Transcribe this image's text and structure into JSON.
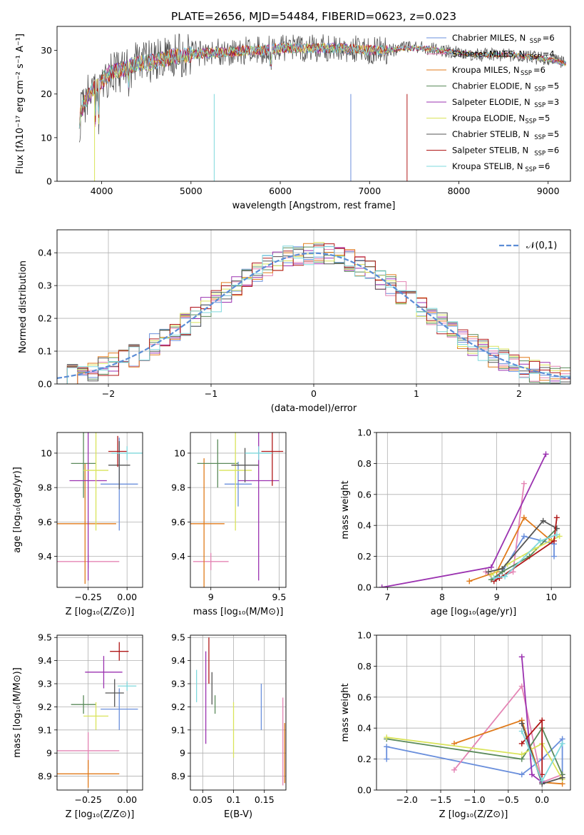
{
  "figure_title": "PLATE=2656, MJD=54484, FIBERID=0623, z=0.023",
  "models": [
    {
      "name": "Chabrier MILES",
      "nssp": "6",
      "color": "#6a8fdc"
    },
    {
      "name": "Salpeter MILES",
      "nssp": "4",
      "color": "#e484b4"
    },
    {
      "name": "Kroupa MILES",
      "nssp": "6",
      "color": "#e07a1a"
    },
    {
      "name": "Chabrier ELODIE",
      "nssp": "5",
      "color": "#5a8a5a"
    },
    {
      "name": "Salpeter ELODIE",
      "nssp": "3",
      "color": "#9b32b0"
    },
    {
      "name": "Kroupa ELODIE",
      "nssp": "5",
      "color": "#d9e35a"
    },
    {
      "name": "Chabrier STELIB",
      "nssp": "5",
      "color": "#555555"
    },
    {
      "name": "Salpeter STELIB",
      "nssp": "6",
      "color": "#b01818"
    },
    {
      "name": "Kroupa STELIB",
      "nssp": "6",
      "color": "#7ed8dc"
    }
  ],
  "chart_data": [
    {
      "id": "spectrum",
      "type": "line",
      "xlabel": "wavelength [Angstrom, rest frame]",
      "ylabel": "Flux [fλ10⁻¹⁷ erg cm⁻² s⁻¹ A⁻¹]",
      "xlim": [
        3500,
        9250
      ],
      "ylim": [
        0,
        35.5
      ],
      "xticks": [
        4000,
        5000,
        6000,
        7000,
        8000,
        9000
      ],
      "yticks": [
        0,
        10,
        20,
        30
      ],
      "x": [
        3750,
        3800,
        3900,
        4000,
        4100,
        4200,
        4300,
        4400,
        4600,
        4800,
        5000,
        5200,
        5400,
        5600,
        5800,
        6000,
        6200,
        6400,
        6600,
        6800,
        7000,
        7200,
        7400,
        7600,
        7800,
        8000,
        8200,
        8400,
        8600,
        8800,
        9000,
        9200
      ],
      "y": [
        14,
        18,
        21,
        23,
        25,
        25.5,
        26,
        27,
        27.5,
        28.5,
        29,
        29.5,
        29.5,
        30,
        30,
        30.5,
        30.5,
        30.5,
        30.5,
        30.5,
        30,
        30,
        30.5,
        30.5,
        30,
        29.5,
        29,
        29,
        29,
        28.5,
        28,
        27
      ],
      "legend": "upper right"
    },
    {
      "id": "residuals",
      "type": "histogram",
      "xlabel": "(data-model)/error",
      "ylabel": "Normed distribution",
      "xlim": [
        -2.5,
        2.5
      ],
      "ylim": [
        0,
        0.47
      ],
      "xticks": [
        -2,
        -1,
        0,
        1,
        2
      ],
      "yticks": [
        0.0,
        0.1,
        0.2,
        0.3,
        0.4
      ],
      "reference": {
        "name": "N(0,1)",
        "label": "𝒩(0,1)",
        "mean": 0,
        "sigma": 1,
        "color": "#5b8dd6"
      },
      "grid": true,
      "legend": "upper right"
    },
    {
      "id": "age_vs_Z",
      "type": "errorbar",
      "xlabel": "Z [log₁₀(Z/Z⊙)]",
      "ylabel": "age  [log₁₀(age/yr)]",
      "xlim": [
        -0.45,
        0.1
      ],
      "ylim": [
        9.22,
        10.12
      ],
      "xticks": [
        -0.25,
        0.0
      ],
      "xtick_labels": [
        "−0.25",
        "0.00"
      ],
      "yticks": [
        9.4,
        9.6,
        9.8,
        10.0
      ],
      "points": [
        {
          "x": -0.05,
          "y": 9.82,
          "xerr": 0.12,
          "yerr": 0.27
        },
        {
          "x": -0.25,
          "y": 9.37,
          "xerr": 0.2,
          "yerr": 0.04
        },
        {
          "x": -0.27,
          "y": 9.59,
          "xerr": 0.2,
          "yerr": 0.35
        },
        {
          "x": -0.28,
          "y": 9.94,
          "xerr": 0.08,
          "yerr": 0.2
        },
        {
          "x": -0.25,
          "y": 9.84,
          "xerr": 0.12,
          "yerr": 0.58
        },
        {
          "x": -0.2,
          "y": 9.9,
          "xerr": 0.08,
          "yerr": 0.35
        },
        {
          "x": -0.05,
          "y": 9.93,
          "xerr": 0.07,
          "yerr": 0.14
        },
        {
          "x": -0.06,
          "y": 10.01,
          "xerr": 0.06,
          "yerr": 0.09
        },
        {
          "x": 0.0,
          "y": 10.0,
          "xerr": 0.1,
          "yerr": 0.04
        }
      ]
    },
    {
      "id": "age_vs_mass",
      "type": "errorbar",
      "xlabel": "mass [log₁₀(M/M⊙)]",
      "ylabel": "",
      "xlim": [
        8.85,
        9.55
      ],
      "ylim": [
        9.22,
        10.12
      ],
      "xticks": [
        9.0,
        9.5
      ],
      "yticks": [
        9.4,
        9.6,
        9.8,
        10.0
      ],
      "points": [
        {
          "x": 9.2,
          "y": 9.82,
          "xerr": 0.1,
          "yerr": 0.13
        },
        {
          "x": 9.0,
          "y": 9.37,
          "xerr": 0.13,
          "yerr": 0.05
        },
        {
          "x": 8.95,
          "y": 9.59,
          "xerr": 0.15,
          "yerr": 0.38
        },
        {
          "x": 9.05,
          "y": 9.94,
          "xerr": 0.15,
          "yerr": 0.14
        },
        {
          "x": 9.35,
          "y": 9.84,
          "xerr": 0.15,
          "yerr": 0.58
        },
        {
          "x": 9.18,
          "y": 9.9,
          "xerr": 0.12,
          "yerr": 0.35
        },
        {
          "x": 9.25,
          "y": 9.93,
          "xerr": 0.1,
          "yerr": 0.1
        },
        {
          "x": 9.45,
          "y": 10.01,
          "xerr": 0.08,
          "yerr": 0.2
        },
        {
          "x": 9.35,
          "y": 10.0,
          "xerr": 0.1,
          "yerr": 0.04
        }
      ]
    },
    {
      "id": "weight_vs_age",
      "type": "line",
      "xlabel": "age  [log₁₀(age/yr)]",
      "ylabel": "mass weight",
      "xlim": [
        6.8,
        10.35
      ],
      "ylim": [
        0,
        1
      ],
      "xticks": [
        7,
        8,
        9,
        10
      ],
      "yticks": [
        0.0,
        0.2,
        0.4,
        0.6,
        0.8,
        1.0
      ],
      "grid": true,
      "series": [
        {
          "x": [
            8.95,
            9.1,
            9.5,
            10.05,
            10.05
          ],
          "y": [
            0.05,
            0.1,
            0.33,
            0.28,
            0.2
          ]
        },
        {
          "x": 8.7,
          "_": "",
          "y": 0
        },
        {
          "x": [
            8.8,
            8.95,
            9.3,
            9.5
          ],
          "y": [
            0.1,
            0.05,
            0.1,
            0.67
          ]
        },
        {
          "x": [
            8.5,
            9.0,
            9.5,
            10.0
          ],
          "y": [
            0.04,
            0.1,
            0.45,
            0.3
          ]
        },
        {
          "x": [
            8.9,
            9.1,
            9.6,
            10.1
          ],
          "y": [
            0.05,
            0.1,
            0.2,
            0.38
          ]
        },
        {
          "x": [
            6.9,
            8.9,
            9.9
          ],
          "y": [
            0.0,
            0.13,
            0.86
          ]
        },
        {
          "x": [
            8.9,
            9.2,
            9.7,
            10.15
          ],
          "y": [
            0.08,
            0.15,
            0.25,
            0.33
          ]
        },
        {
          "x": [
            8.85,
            9.1,
            9.85,
            10.1
          ],
          "y": [
            0.1,
            0.12,
            0.43,
            0.38
          ]
        },
        {
          "x": [
            8.95,
            9.05,
            10.05,
            10.1
          ],
          "y": [
            0.04,
            0.06,
            0.3,
            0.45
          ]
        },
        {
          "x": [
            8.95,
            9.15,
            9.8,
            10.1
          ],
          "y": [
            0.06,
            0.07,
            0.3,
            0.34
          ]
        }
      ]
    },
    {
      "id": "mass_vs_Z",
      "type": "errorbar",
      "xlabel": "Z [log₁₀(Z/Z⊙)]",
      "ylabel": "mass [log₁₀(M/M⊙)]",
      "xlim": [
        -0.45,
        0.1
      ],
      "ylim": [
        8.84,
        9.51
      ],
      "xticks": [
        -0.25,
        0.0
      ],
      "xtick_labels": [
        "−0.25",
        "0.00"
      ],
      "yticks": [
        8.9,
        9.0,
        9.1,
        9.2,
        9.3,
        9.4,
        9.5
      ],
      "points": [
        {
          "x": -0.05,
          "y": 9.19,
          "xerr": 0.12,
          "yerr": 0.09
        },
        {
          "x": -0.25,
          "y": 9.01,
          "xerr": 0.2,
          "yerr": 0.08
        },
        {
          "x": -0.25,
          "y": 8.91,
          "xerr": 0.2,
          "yerr": 0.06
        },
        {
          "x": -0.28,
          "y": 9.21,
          "xerr": 0.08,
          "yerr": 0.04
        },
        {
          "x": -0.15,
          "y": 9.35,
          "xerr": 0.12,
          "yerr": 0.07
        },
        {
          "x": -0.2,
          "y": 9.16,
          "xerr": 0.08,
          "yerr": 0.06
        },
        {
          "x": -0.08,
          "y": 9.26,
          "xerr": 0.06,
          "yerr": 0.06
        },
        {
          "x": -0.05,
          "y": 9.44,
          "xerr": 0.06,
          "yerr": 0.04
        },
        {
          "x": 0.0,
          "y": 9.29,
          "xerr": 0.06,
          "yerr": 0.02
        }
      ]
    },
    {
      "id": "mass_vs_ebv",
      "type": "errorbar",
      "xlabel": "E(B-V)",
      "ylabel": "",
      "xlim": [
        0.03,
        0.185
      ],
      "ylim": [
        8.84,
        9.51
      ],
      "xticks": [
        0.05,
        0.1,
        0.15
      ],
      "yticks": [
        8.9,
        9.0,
        9.1,
        9.2,
        9.3,
        9.4,
        9.5
      ],
      "points": [
        {
          "x": 0.145,
          "y": 9.2,
          "xerr": 0,
          "yerr": 0.1
        },
        {
          "x": 0.18,
          "y": 9.05,
          "xerr": 0,
          "yerr": 0.19
        },
        {
          "x": 0.183,
          "y": 9.0,
          "xerr": 0,
          "yerr": 0.13
        },
        {
          "x": 0.07,
          "y": 9.21,
          "xerr": 0,
          "yerr": 0.04
        },
        {
          "x": 0.055,
          "y": 9.24,
          "xerr": 0,
          "yerr": 0.2
        },
        {
          "x": 0.1,
          "y": 9.1,
          "xerr": 0,
          "yerr": 0.12
        },
        {
          "x": 0.065,
          "y": 9.28,
          "xerr": 0,
          "yerr": 0.07
        },
        {
          "x": 0.06,
          "y": 9.4,
          "xerr": 0,
          "yerr": 0.1
        },
        {
          "x": 0.04,
          "y": 9.29,
          "xerr": 0,
          "yerr": 0.07
        }
      ]
    },
    {
      "id": "weight_vs_Z",
      "type": "line",
      "xlabel": "Z [log₁₀(Z/Z⊙)]",
      "ylabel": "mass weight",
      "xlim": [
        -2.45,
        0.42
      ],
      "ylim": [
        0,
        1
      ],
      "xticks": [
        -2.0,
        -1.5,
        -1.0,
        -0.5,
        0.0
      ],
      "xtick_labels": [
        "−2.0",
        "−1.5",
        "−1.0",
        "−0.5",
        "0.0"
      ],
      "yticks": [
        0.0,
        0.2,
        0.4,
        0.6,
        0.8,
        1.0
      ],
      "grid": true,
      "series": [
        {
          "x": [
            -2.3,
            -2.3,
            -0.3,
            0.0,
            0.3,
            0.3
          ],
          "y": [
            0.2,
            0.28,
            0.1,
            0.2,
            0.33,
            0.1
          ]
        },
        {
          "x": [
            -1.3,
            -0.3,
            0.0,
            0.3
          ],
          "y": [
            0.13,
            0.67,
            0.05,
            0.1
          ]
        },
        {
          "x": [
            -1.3,
            -0.3,
            0.0,
            0.3
          ],
          "y": [
            0.3,
            0.45,
            0.05,
            0.04
          ]
        },
        {
          "x": [
            -2.3,
            -0.3,
            0.0,
            0.3
          ],
          "y": [
            0.33,
            0.2,
            0.4,
            0.1
          ]
        },
        {
          "x": [
            -0.3,
            -0.15,
            0.0
          ],
          "y": [
            0.86,
            0.1,
            0.05
          ]
        },
        {
          "x": [
            -2.3,
            -0.3,
            0.0,
            0.3
          ],
          "y": [
            0.34,
            0.23,
            0.3,
            0.07
          ]
        },
        {
          "x": [
            -0.3,
            0.0,
            0.3
          ],
          "y": [
            0.43,
            0.04,
            0.08
          ]
        },
        {
          "x": [
            -0.3,
            0.0,
            0.0
          ],
          "y": [
            0.3,
            0.45,
            0.1
          ]
        },
        {
          "x": [
            -0.3,
            0.0,
            0.3
          ],
          "y": [
            0.38,
            0.06,
            0.3
          ]
        }
      ]
    }
  ]
}
